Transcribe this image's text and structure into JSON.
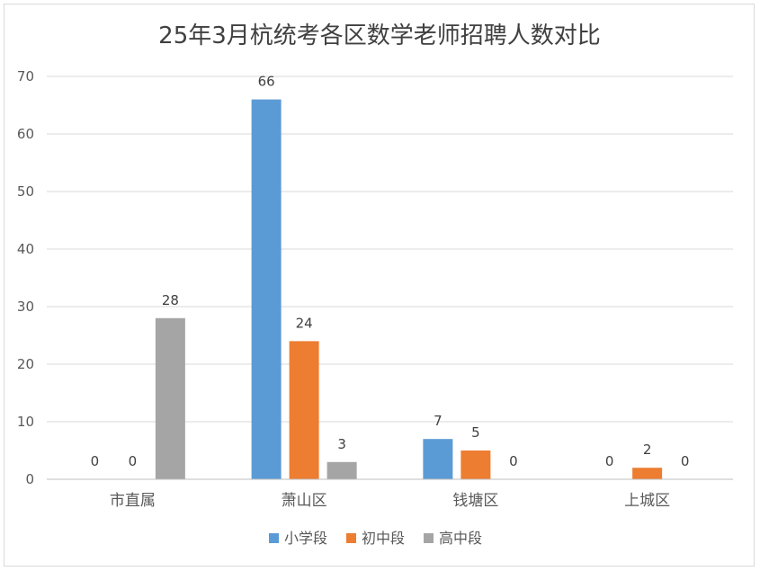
{
  "chart_data": {
    "type": "bar",
    "title": "25年3月杭统考各区数学老师招聘人数对比",
    "xlabel": "",
    "ylabel": "",
    "categories": [
      "市直属",
      "萧山区",
      "钱塘区",
      "上城区"
    ],
    "series": [
      {
        "name": "小学段",
        "color": "#5b9bd5",
        "values": [
          0,
          66,
          7,
          0
        ]
      },
      {
        "name": "初中段",
        "color": "#ed7d31",
        "values": [
          0,
          24,
          5,
          2
        ]
      },
      {
        "name": "高中段",
        "color": "#a5a5a5",
        "values": [
          28,
          3,
          0,
          0
        ]
      }
    ],
    "ylim": [
      0,
      70
    ],
    "yticks": [
      0,
      10,
      20,
      30,
      40,
      50,
      60,
      70
    ],
    "grid": true,
    "legend_position": "bottom",
    "data_labels": true
  },
  "colors": {
    "grid": "#d9d9d9",
    "axis": "#bfbfbf",
    "border": "#d9d9d9"
  }
}
